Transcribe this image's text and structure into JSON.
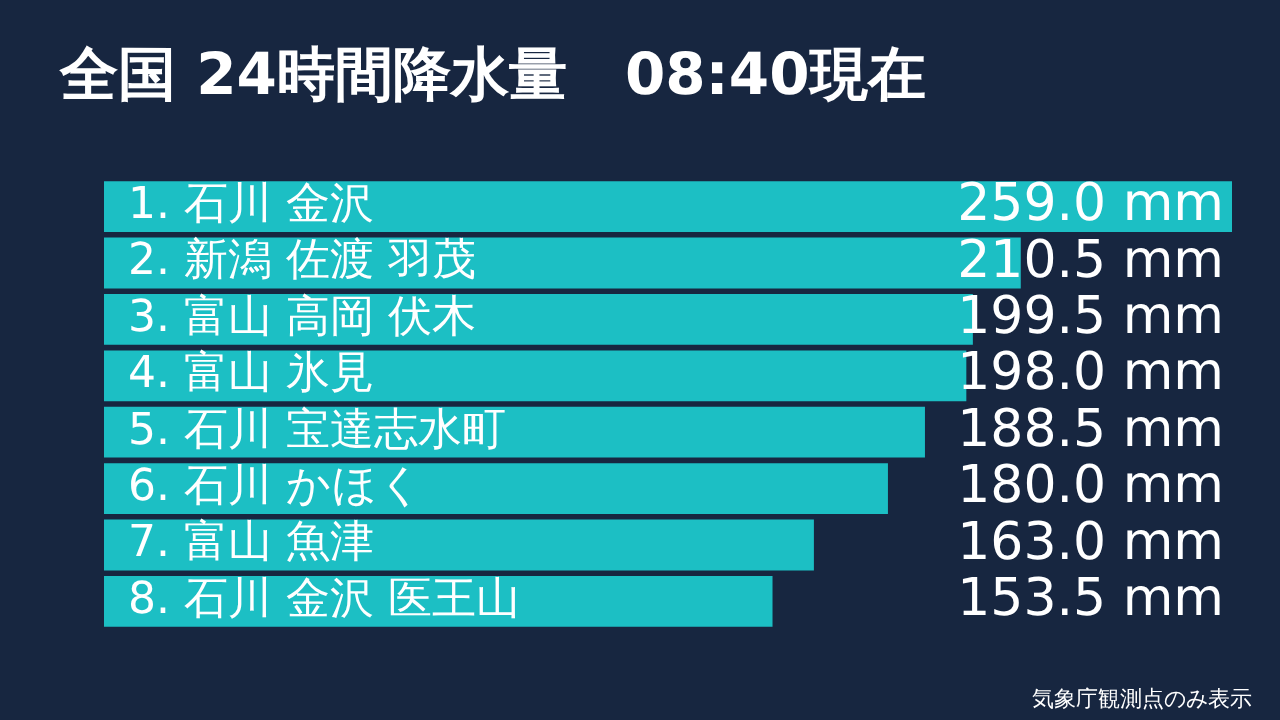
{
  "chart_data": {
    "type": "bar",
    "orientation": "horizontal",
    "title": "全国 24時間降水量　08:40現在",
    "categories": [
      "1. 石川 金沢",
      "2. 新潟 佐渡 羽茂",
      "3. 富山 高岡 伏木",
      "4. 富山 氷見",
      "5. 石川 宝達志水町",
      "6. 石川 かほく",
      "7. 富山 魚津",
      "8. 石川 金沢 医王山"
    ],
    "values": [
      259.0,
      210.5,
      199.5,
      198.0,
      188.5,
      180.0,
      163.0,
      153.5
    ],
    "value_labels": [
      "259.0 mm",
      "210.5 mm",
      "199.5 mm",
      "198.0 mm",
      "188.5 mm",
      "180.0 mm",
      "163.0 mm",
      "153.5 mm"
    ],
    "color": "#1cbfc4",
    "xlim": [
      0,
      259
    ],
    "tick_labels": "y",
    "grid": false,
    "legend": false,
    "annotations": [
      "気象庁観測点のみ表示"
    ]
  }
}
